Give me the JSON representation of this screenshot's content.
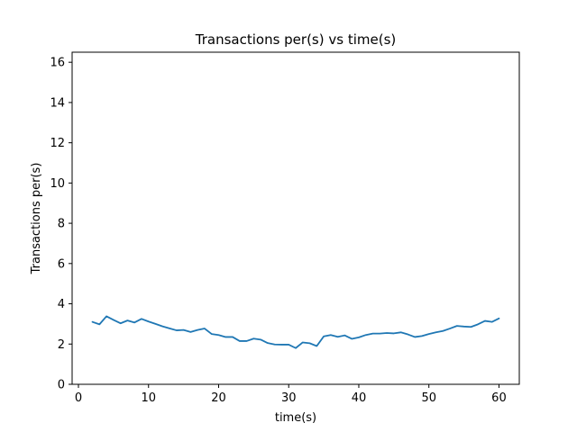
{
  "chart_data": {
    "type": "line",
    "title": "Transactions per(s) vs time(s)",
    "xlabel": "time(s)",
    "ylabel": "Transactions per(s)",
    "xlim": [
      -0.9,
      62.9
    ],
    "ylim": [
      0,
      16.5
    ],
    "xticks": [
      0,
      10,
      20,
      30,
      40,
      50,
      60
    ],
    "yticks": [
      0,
      2,
      4,
      6,
      8,
      10,
      12,
      14,
      16
    ],
    "grid": false,
    "legend": "none",
    "series": [
      {
        "color": "#1f77b4",
        "x": [
          2,
          3,
          4,
          5,
          6,
          7,
          8,
          9,
          10,
          11,
          12,
          13,
          14,
          15,
          16,
          17,
          18,
          19,
          20,
          21,
          22,
          23,
          24,
          25,
          26,
          27,
          28,
          29,
          30,
          31,
          32,
          33,
          34,
          35,
          36,
          37,
          38,
          39,
          40,
          41,
          42,
          43,
          44,
          45,
          46,
          47,
          48,
          49,
          50,
          51,
          52,
          53,
          54,
          55,
          56,
          57,
          58,
          59,
          60
        ],
        "values": [
          3.1,
          2.98,
          3.38,
          3.2,
          3.03,
          3.17,
          3.07,
          3.25,
          3.12,
          3.0,
          2.88,
          2.78,
          2.68,
          2.7,
          2.6,
          2.7,
          2.77,
          2.5,
          2.45,
          2.35,
          2.35,
          2.15,
          2.15,
          2.27,
          2.22,
          2.05,
          1.98,
          1.97,
          1.97,
          1.8,
          2.08,
          2.04,
          1.9,
          2.38,
          2.45,
          2.36,
          2.43,
          2.26,
          2.33,
          2.45,
          2.52,
          2.52,
          2.55,
          2.53,
          2.58,
          2.48,
          2.35,
          2.4,
          2.5,
          2.58,
          2.65,
          2.77,
          2.9,
          2.87,
          2.85,
          2.98,
          3.15,
          3.1,
          3.27
        ]
      }
    ]
  }
}
